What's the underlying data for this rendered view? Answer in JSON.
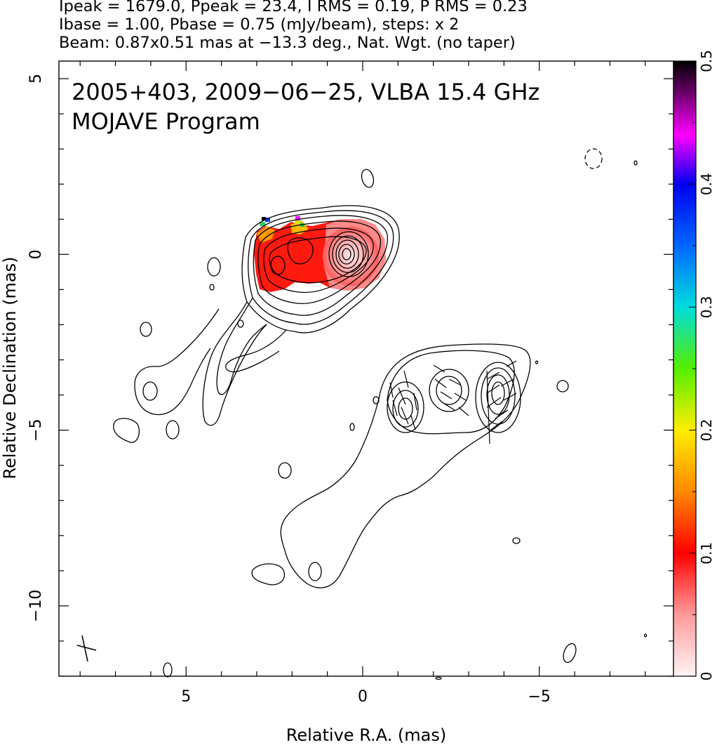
{
  "header": {
    "line1": "Ipeak = 1679.0, Ppeak = 23.4, I RMS = 0.19, P RMS = 0.23",
    "line2": "Ibase = 1.00, Pbase = 0.75 (mJy/beam), steps: x 2",
    "line3": "Beam: 0.87x0.51 mas at −13.3 deg., Nat. Wgt. (no taper)"
  },
  "chart_data": {
    "type": "heatmap",
    "title": "2005+403, 2009−06−25, VLBA 15.4 GHz",
    "subtitle": "MOJAVE Program",
    "xlabel": "Relative R.A. (mas)",
    "ylabel": "Relative Declination (mas)",
    "xlim": [
      8.6,
      -8.8
    ],
    "ylim": [
      -12.0,
      5.5
    ],
    "xticks": [
      5,
      0,
      -5
    ],
    "xtick_labels": [
      "5",
      "0",
      "−5"
    ],
    "yticks": [
      5,
      0,
      -5,
      -10
    ],
    "ytick_labels": [
      "5",
      "0",
      "−5",
      "−10"
    ],
    "colorbar": {
      "range": [
        0,
        0.5
      ],
      "ticks": [
        0,
        0.1,
        0.2,
        0.3,
        0.4,
        0.5
      ],
      "tick_labels": [
        "0",
        "0.1",
        "0.2",
        "0.3",
        "0.4",
        "0.5"
      ]
    },
    "core_peak": {
      "ra": 0.2,
      "dec": 0.0
    },
    "jet_components": [
      {
        "ra": 0.2,
        "dec": 0.0
      },
      {
        "ra": 1.8,
        "dec": -0.2
      },
      {
        "ra": 2.4,
        "dec": -0.3
      },
      {
        "ra": -1.4,
        "dec": -4.3
      },
      {
        "ra": -2.5,
        "dec": -4.0
      },
      {
        "ra": -3.9,
        "dec": -4.0
      }
    ]
  }
}
